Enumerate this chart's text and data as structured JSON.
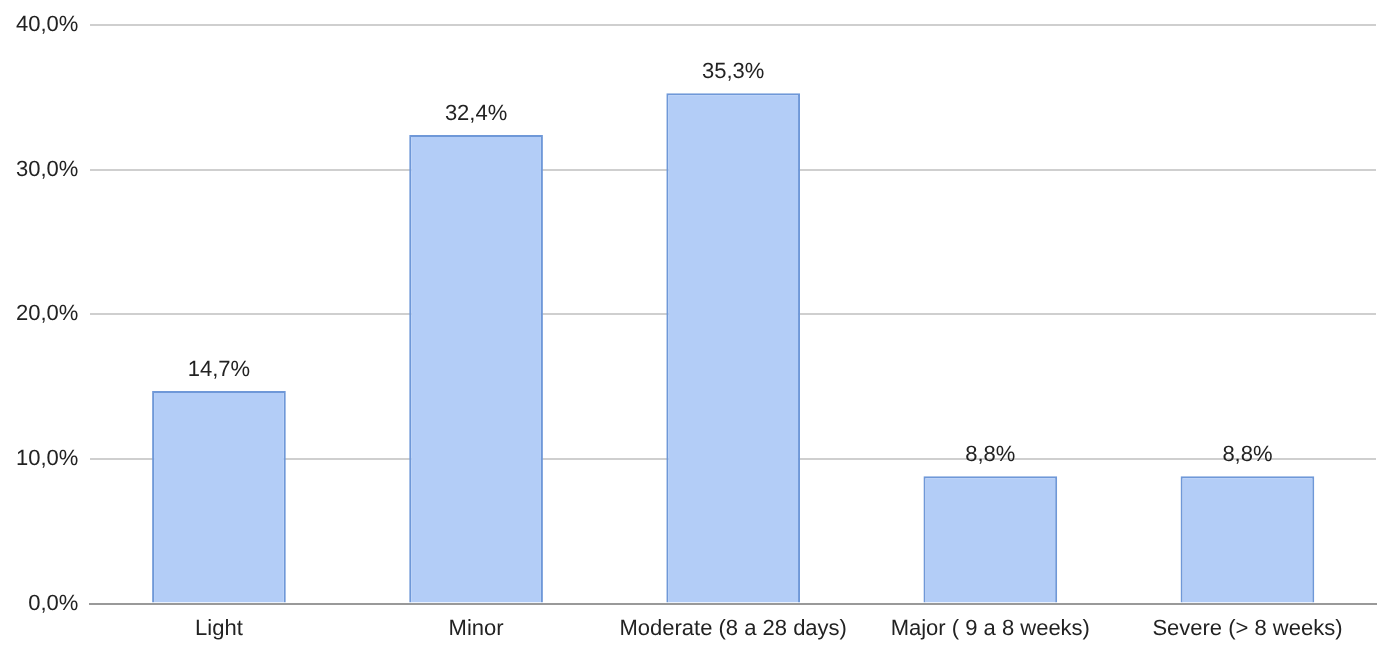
{
  "chart_data": {
    "type": "bar",
    "categories": [
      "Light",
      "Minor",
      "Moderate (8 a 28 days)",
      "Major ( 9 a 8 weeks)",
      "Severe (> 8 weeks)"
    ],
    "values": [
      14.7,
      32.4,
      35.3,
      8.8,
      8.8
    ],
    "color": "#b3cdf7",
    "value_labels": [
      "14,7%",
      "32,4%",
      "35,3%",
      "8,8%",
      "8,8%"
    ],
    "ylim": [
      0,
      40
    ],
    "yticks": [
      {
        "value": 0,
        "label": "0,0%"
      },
      {
        "value": 10,
        "label": "10,0%"
      },
      {
        "value": 20,
        "label": "20,0%"
      },
      {
        "value": 30,
        "label": "30,0%"
      },
      {
        "value": 40,
        "label": "40,0%"
      }
    ],
    "grid": "y",
    "legend": false
  }
}
